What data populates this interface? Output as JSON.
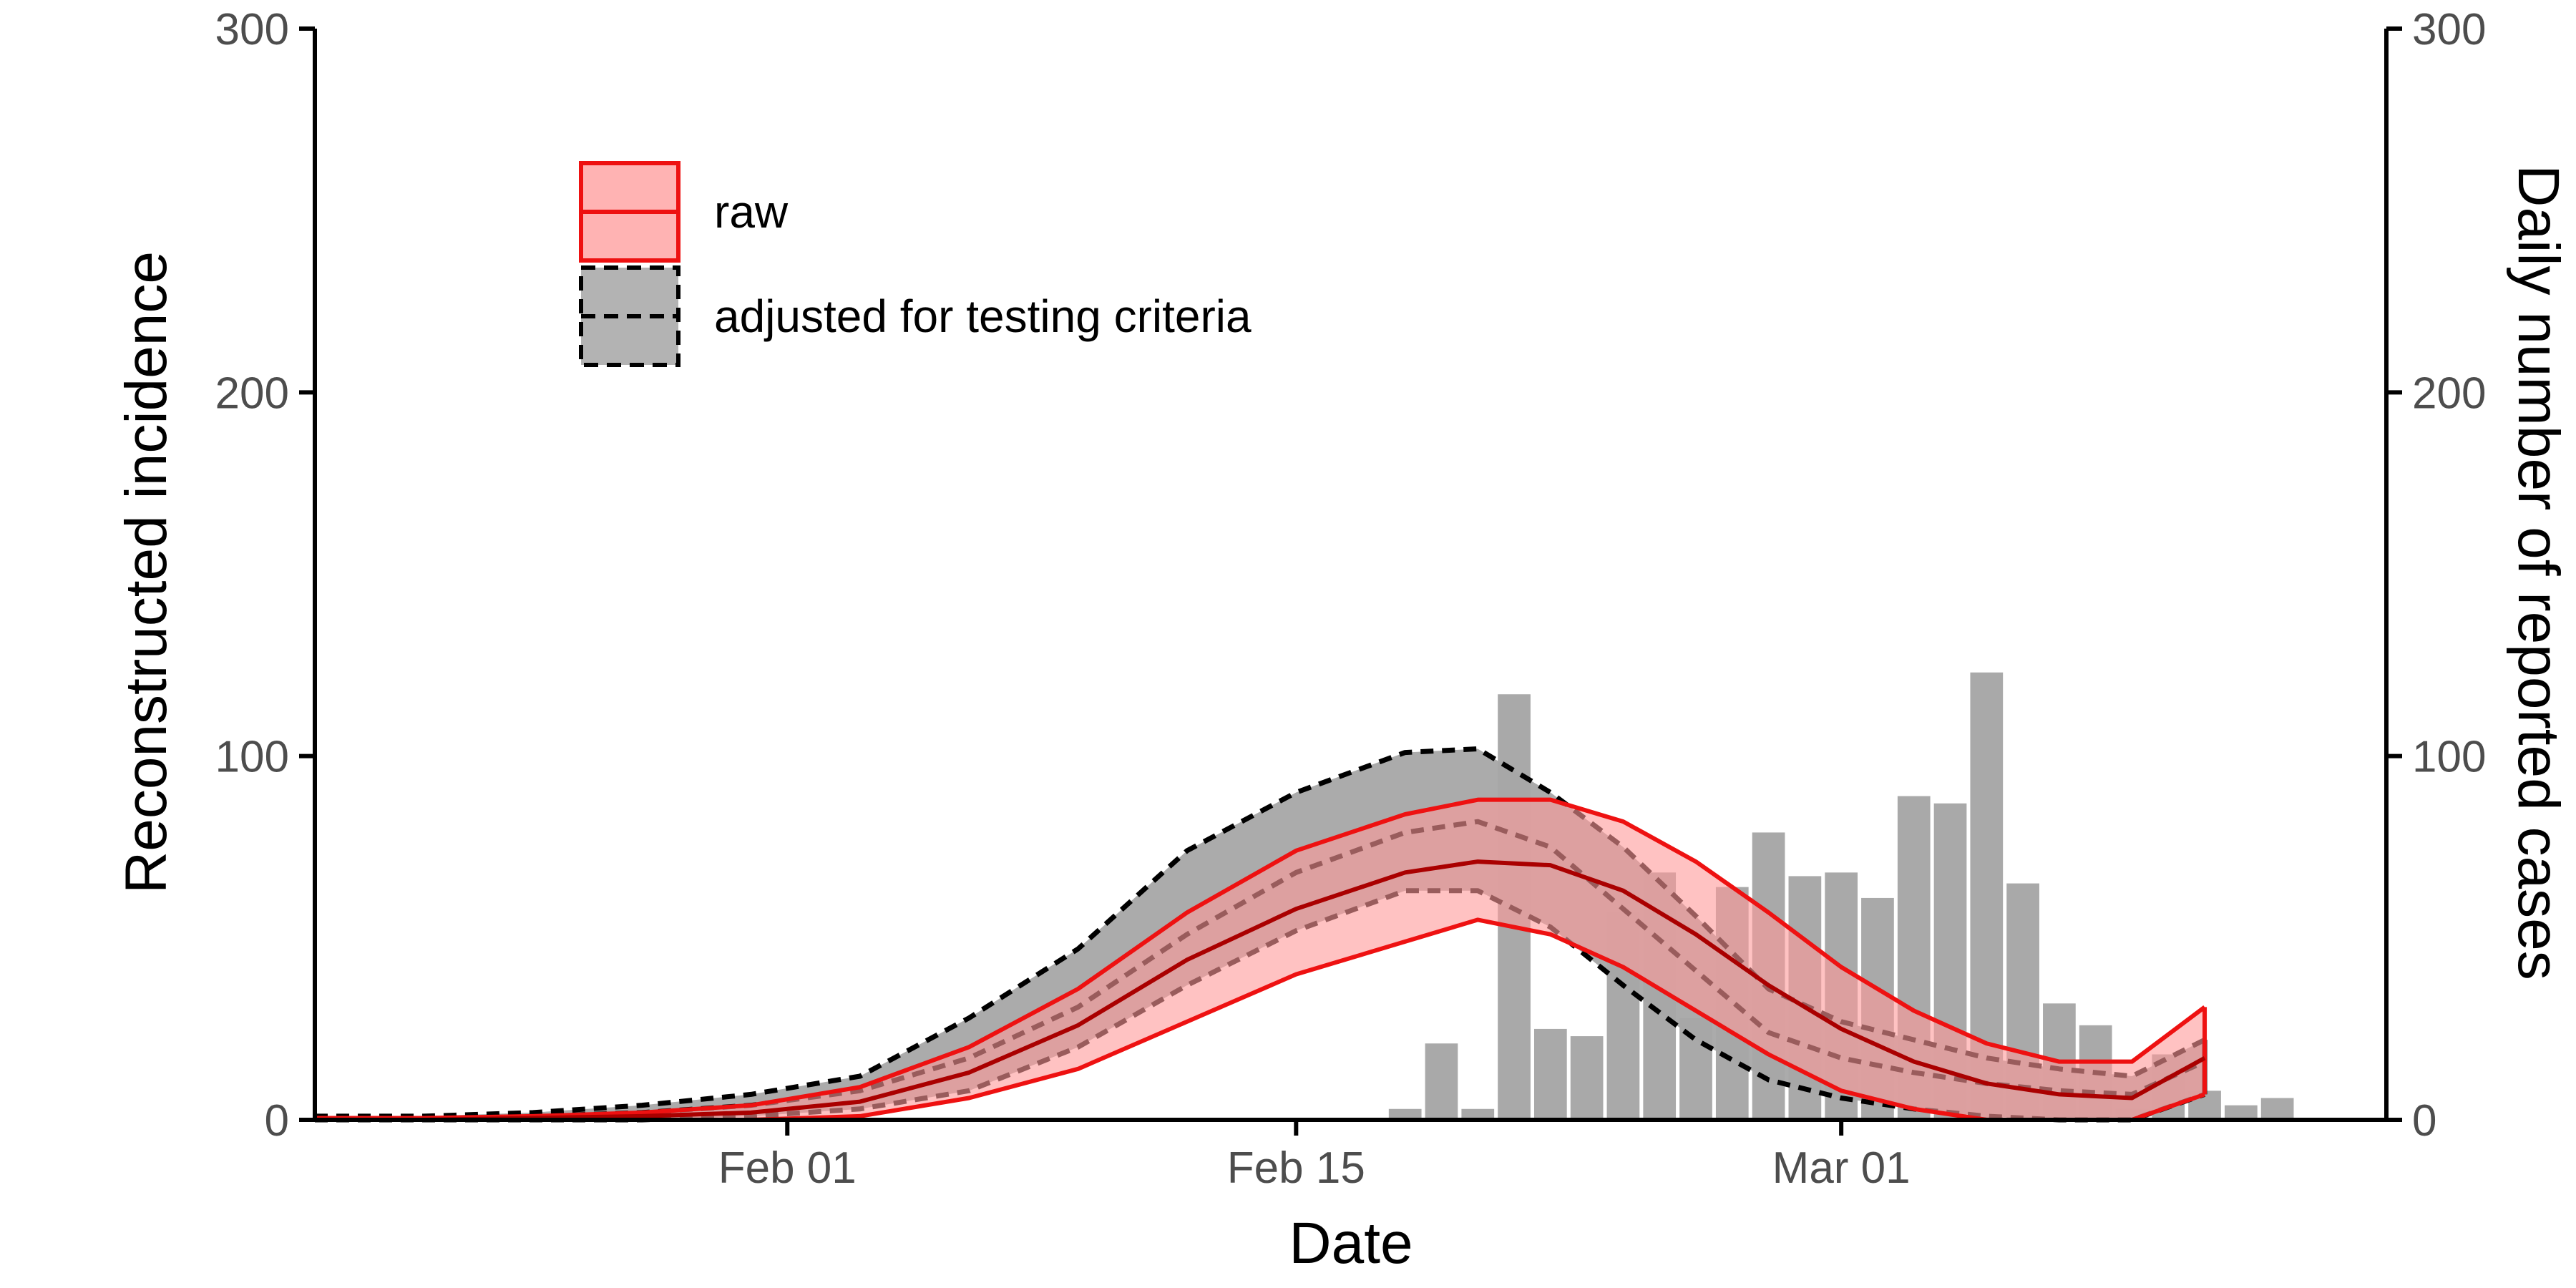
{
  "chart_data": {
    "type": "area",
    "xlabel": "Date",
    "ylabel_left": "Reconstructed incidence",
    "ylabel_right": "Daily number of reported cases",
    "ylim_left": [
      0,
      300
    ],
    "ylim_right": [
      0,
      300
    ],
    "yticks_left": [
      "0",
      "100",
      "200",
      "300"
    ],
    "yticks_right": [
      "0",
      "100",
      "200",
      "300"
    ],
    "x_range": [
      "2020-01-19",
      "2020-03-16"
    ],
    "x_ticks": [
      {
        "date": "2020-02-01",
        "label": "Feb 01"
      },
      {
        "date": "2020-02-15",
        "label": "Feb 15"
      },
      {
        "date": "2020-03-01",
        "label": "Mar 01"
      }
    ],
    "legend": [
      {
        "label": "raw",
        "fill": "#ffb3b3",
        "stroke": "#ee1111",
        "dash": "solid"
      },
      {
        "label": "adjusted for testing criteria",
        "fill": "#b3b3b3",
        "stroke": "#000000",
        "dash": "dashed"
      }
    ],
    "colors": {
      "raw_band": "#ff9999",
      "raw_line": "#ee1111",
      "raw_inner_line": "#aa0000",
      "adjusted_band": "#a6a6a6",
      "bars": "#a9a9a9",
      "axis": "#000000"
    },
    "bars": {
      "dates": [
        "2020-02-18",
        "2020-02-19",
        "2020-02-20",
        "2020-02-21",
        "2020-02-22",
        "2020-02-23",
        "2020-02-24",
        "2020-02-25",
        "2020-02-26",
        "2020-02-27",
        "2020-02-28",
        "2020-02-29",
        "2020-03-01",
        "2020-03-02",
        "2020-03-03",
        "2020-03-04",
        "2020-03-05",
        "2020-03-06",
        "2020-03-07",
        "2020-03-08",
        "2020-03-09",
        "2020-03-10",
        "2020-03-11",
        "2020-03-12",
        "2020-03-13",
        "2020-03-14",
        "2020-03-15",
        "2020-03-16"
      ],
      "values": [
        3,
        21,
        3,
        117,
        25,
        23,
        57,
        68,
        28,
        64,
        79,
        67,
        68,
        61,
        89,
        87,
        123,
        65,
        32,
        26,
        3,
        18,
        8,
        4,
        6,
        0,
        0,
        0
      ]
    },
    "series": [
      {
        "key": "adjusted",
        "dates": [
          "2020-01-19",
          "2020-01-22",
          "2020-01-25",
          "2020-01-28",
          "2020-01-31",
          "2020-02-03",
          "2020-02-06",
          "2020-02-09",
          "2020-02-12",
          "2020-02-15",
          "2020-02-18",
          "2020-02-20",
          "2020-02-22",
          "2020-02-24",
          "2020-02-26",
          "2020-02-28",
          "2020-03-01",
          "2020-03-03",
          "2020-03-05",
          "2020-03-07",
          "2020-03-09",
          "2020-03-11"
        ],
        "upper": [
          1,
          1,
          2,
          4,
          7,
          12,
          28,
          47,
          74,
          90,
          101,
          102,
          90,
          75,
          56,
          36,
          27,
          22,
          17,
          14,
          12,
          22
        ],
        "mid": [
          0.5,
          0.5,
          1,
          2,
          4,
          8,
          17,
          31,
          51,
          68,
          79,
          82,
          75,
          58,
          41,
          24,
          17,
          13,
          10,
          8,
          7,
          16
        ],
        "lower": [
          0,
          0,
          0,
          0,
          1,
          3,
          8,
          20,
          37,
          52,
          63,
          63,
          53,
          37,
          22,
          11,
          6,
          3,
          1,
          0,
          0,
          7
        ]
      },
      {
        "key": "raw",
        "dates": [
          "2020-01-19",
          "2020-01-22",
          "2020-01-25",
          "2020-01-28",
          "2020-01-31",
          "2020-02-03",
          "2020-02-06",
          "2020-02-09",
          "2020-02-12",
          "2020-02-15",
          "2020-02-18",
          "2020-02-20",
          "2020-02-22",
          "2020-02-24",
          "2020-02-26",
          "2020-02-28",
          "2020-03-01",
          "2020-03-03",
          "2020-03-05",
          "2020-03-07",
          "2020-03-09",
          "2020-03-11"
        ],
        "upper": [
          0.5,
          0.5,
          1,
          2,
          4,
          9,
          20,
          36,
          57,
          74,
          84,
          88,
          88,
          82,
          71,
          57,
          42,
          30,
          21,
          16,
          16,
          31
        ],
        "mid": [
          0,
          0,
          0.5,
          1,
          2,
          5,
          13,
          26,
          44,
          58,
          68,
          71,
          70,
          63,
          51,
          37,
          25,
          16,
          10,
          7,
          6,
          17
        ],
        "lower": [
          0,
          0,
          0,
          0,
          0,
          1,
          6,
          14,
          27,
          40,
          49,
          55,
          51,
          42,
          30,
          18,
          8,
          3,
          0,
          0,
          0,
          7
        ]
      }
    ]
  }
}
